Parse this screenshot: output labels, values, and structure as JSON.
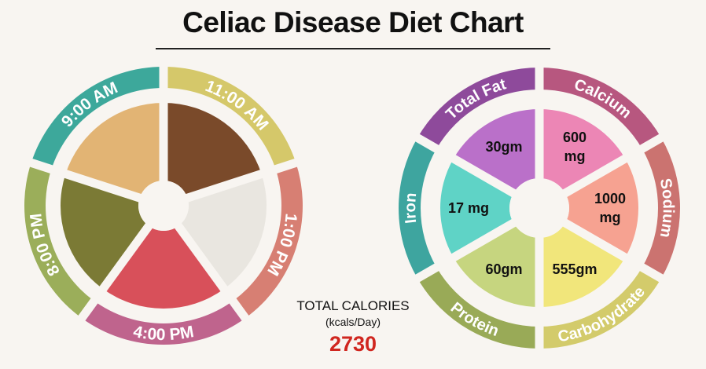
{
  "title": "Celiac Disease Diet Chart",
  "total_calories": {
    "label": "TOTAL CALORIES",
    "unit": "(kcals/Day)",
    "value": "2730",
    "value_color": "#d0261f"
  },
  "meal_schedule": [
    {
      "time": "11:00 AM",
      "color": "#d5c86a",
      "food_color": "#7a4a2a",
      "food": "chickpeas-image"
    },
    {
      "time": "1:00 PM",
      "color": "#d77f73",
      "food_color": "#e9e6e0",
      "food": "rice-bowl-image"
    },
    {
      "time": "4:00 PM",
      "color": "#bf648d",
      "food_color": "#d8505a",
      "food": "fruit-salad-image"
    },
    {
      "time": "8:00 PM",
      "color": "#9bae5a",
      "food_color": "#7b7a35",
      "food": "okra-curry-image"
    },
    {
      "time": "9:00 AM",
      "color": "#3da89b",
      "food_color": "#e2b474",
      "food": "flatbread-image"
    }
  ],
  "nutrients": [
    {
      "name": "Calcium",
      "value_lines": [
        "600",
        "mg"
      ],
      "ring_color": "#b7577f",
      "fill_color": "#ec86b5"
    },
    {
      "name": "Sodium",
      "value_lines": [
        "1000",
        "mg"
      ],
      "ring_color": "#cb7370",
      "fill_color": "#f6a291"
    },
    {
      "name": "Carbohydrate",
      "value_lines": [
        "555gm"
      ],
      "ring_color": "#d3cb6b",
      "fill_color": "#f1e67b"
    },
    {
      "name": "Protein",
      "value_lines": [
        "60gm"
      ],
      "ring_color": "#99aa57",
      "fill_color": "#c6d57f"
    },
    {
      "name": "Iron",
      "value_lines": [
        "17 mg"
      ],
      "ring_color": "#3ea59f",
      "fill_color": "#5fd3c6"
    },
    {
      "name": "Total Fat",
      "value_lines": [
        "30gm"
      ],
      "ring_color": "#8e4a9b",
      "fill_color": "#ba70c9"
    }
  ]
}
